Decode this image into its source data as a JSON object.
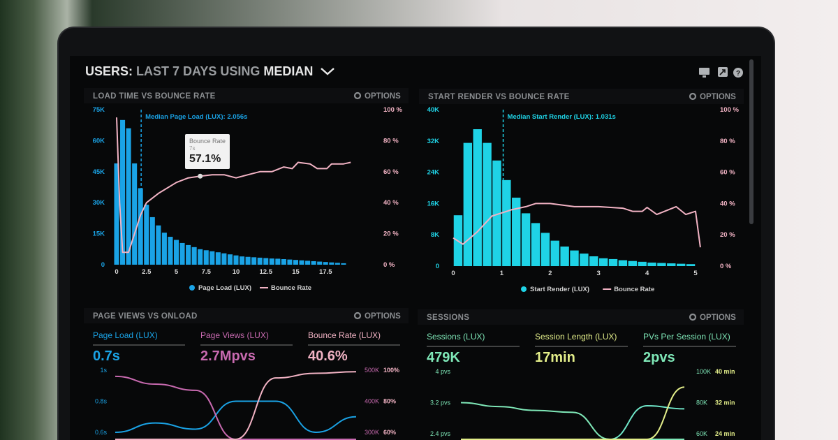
{
  "header": {
    "prefix": "USERS:",
    "period": "LAST 7 DAYS",
    "using": "USING",
    "stat": "MEDIAN"
  },
  "header_icons": [
    "monitor-icon",
    "share-icon",
    "help-icon"
  ],
  "options_label": "OPTIONS",
  "colors": {
    "blue": "#1aa3e6",
    "cyan": "#1fd3e6",
    "pink": "#f2b3c4",
    "purple": "#c86ab0",
    "green": "#7fe8b8",
    "yellow": "#e3ee8a"
  },
  "chart_data": [
    {
      "type": "bar",
      "title": "LOAD TIME VS BOUNCE RATE",
      "annotation": "Median Page Load (LUX): 2.056s",
      "median": 2.056,
      "xticks": [
        "0",
        "2.5",
        "5",
        "7.5",
        "10",
        "12.5",
        "15",
        "17.5"
      ],
      "ylim": [
        0,
        75000
      ],
      "yticks": [
        "0",
        "15K",
        "30K",
        "45K",
        "60K",
        "75K"
      ],
      "y2ticks": [
        "0 %",
        "20 %",
        "40 %",
        "60 %",
        "80 %",
        "100 %"
      ],
      "y2lim": [
        0,
        100
      ],
      "legend_position": "bottom",
      "tooltip": {
        "label": "Bounce Rate",
        "x": "7s",
        "value": "57.1%"
      },
      "series": [
        {
          "name": "Page Load (LUX)",
          "type": "bar",
          "bin": 0.5,
          "x_start": 0,
          "values": [
            49,
            70,
            66,
            49,
            37,
            29,
            23,
            19,
            15.5,
            13.5,
            12,
            10.5,
            9.5,
            8.5,
            7.5,
            7,
            6.5,
            6,
            5.5,
            5,
            4.5,
            4,
            3.8,
            3.6,
            3.4,
            3.2,
            3,
            2.9,
            2.7,
            2.5,
            2.3,
            2.1,
            1.9,
            1.7,
            1.5,
            1.3,
            1.1,
            0.9,
            0.7
          ],
          "unit": "K"
        },
        {
          "name": "Bounce Rate",
          "type": "line",
          "points": [
            [
              0,
              95
            ],
            [
              0.25,
              40
            ],
            [
              0.5,
              8
            ],
            [
              1,
              8
            ],
            [
              1.5,
              20
            ],
            [
              2,
              32
            ],
            [
              2.5,
              40
            ],
            [
              3.5,
              46
            ],
            [
              5,
              53
            ],
            [
              6,
              56
            ],
            [
              7,
              57.1
            ],
            [
              8,
              58
            ],
            [
              9,
              58
            ],
            [
              10,
              56
            ],
            [
              11,
              58
            ],
            [
              12,
              60
            ],
            [
              13,
              60
            ],
            [
              14,
              63
            ],
            [
              14.7,
              62
            ],
            [
              15.2,
              66
            ],
            [
              16.2,
              65
            ],
            [
              16.8,
              62
            ],
            [
              17.6,
              62
            ],
            [
              18,
              65
            ],
            [
              19,
              65
            ],
            [
              19.6,
              66
            ]
          ]
        }
      ]
    },
    {
      "type": "bar",
      "title": "START RENDER VS BOUNCE RATE",
      "annotation": "Median Start Render (LUX): 1.031s",
      "median": 1.031,
      "xticks": [
        "0",
        "1",
        "2",
        "3",
        "4",
        "5"
      ],
      "ylim": [
        0,
        40000
      ],
      "yticks": [
        "0",
        "8K",
        "16K",
        "24K",
        "32K",
        "40K"
      ],
      "y2ticks": [
        "0 %",
        "20 %",
        "40 %",
        "60 %",
        "80 %",
        "100 %"
      ],
      "y2lim": [
        0,
        100
      ],
      "legend_position": "bottom",
      "series": [
        {
          "name": "Start Render (LUX)",
          "type": "bar",
          "bin": 0.2,
          "x_start": 0.1,
          "values": [
            13,
            31.5,
            35,
            31.5,
            27,
            22,
            17.5,
            13.5,
            11,
            8.5,
            6.5,
            5,
            4,
            3.2,
            2.5,
            2,
            1.8,
            1.5,
            1.3,
            1.1,
            0.9,
            0.8,
            0.7,
            0.6,
            0.5
          ],
          "unit": "K"
        },
        {
          "name": "Bounce Rate",
          "type": "line",
          "points": [
            [
              0,
              18
            ],
            [
              0.2,
              14
            ],
            [
              0.5,
              22
            ],
            [
              0.8,
              32
            ],
            [
              1.2,
              36
            ],
            [
              1.5,
              38
            ],
            [
              1.7,
              40
            ],
            [
              2,
              40
            ],
            [
              2.5,
              38
            ],
            [
              3,
              38
            ],
            [
              3.5,
              37
            ],
            [
              3.7,
              35
            ],
            [
              3.9,
              35
            ],
            [
              4,
              37.5
            ],
            [
              4.2,
              33
            ],
            [
              4.6,
              38
            ],
            [
              4.8,
              33
            ],
            [
              5,
              35
            ],
            [
              5.1,
              12
            ]
          ]
        }
      ]
    },
    {
      "type": "line",
      "title": "PAGE VIEWS VS ONLOAD",
      "metrics": [
        {
          "label": "Page Load (LUX)",
          "value": "0.7s"
        },
        {
          "label": "Page Views (LUX)",
          "value": "2.7Mpvs"
        },
        {
          "label": "Bounce Rate (LUX)",
          "value": "40.6%"
        }
      ],
      "yticks": [
        "1s",
        "0.8s",
        "0.6s"
      ],
      "y2ticks": [
        "500K",
        "400K",
        "300K"
      ],
      "y3ticks": [
        "100%",
        "80%",
        "60%"
      ],
      "series": [
        {
          "name": "Page Load (LUX)",
          "values": [
            0.6,
            0.66,
            0.62,
            0.8,
            0.8,
            0.6,
            0.7
          ]
        },
        {
          "name": "Page Views (LUX)",
          "values": [
            480,
            455,
            435,
            250,
            150,
            150,
            150
          ]
        },
        {
          "name": "Bounce Rate (LUX)",
          "values": [
            20,
            20,
            20,
            20,
            95,
            98,
            99
          ]
        }
      ]
    },
    {
      "type": "line",
      "title": "SESSIONS",
      "metrics": [
        {
          "label": "Sessions (LUX)",
          "value": "479K"
        },
        {
          "label": "Session Length (LUX)",
          "value": "17min"
        },
        {
          "label": "PVs Per Session (LUX)",
          "value": "2pvs"
        }
      ],
      "yticks": [
        "4 pvs",
        "3.2 pvs",
        "2.4 pvs"
      ],
      "y2ticks": [
        "100K",
        "80K",
        "60K"
      ],
      "y3ticks": [
        "40 min",
        "32 min",
        "24 min"
      ],
      "series": [
        {
          "name": "PVs Per Session (LUX)",
          "values": [
            3.2,
            3.1,
            3.0,
            2.95,
            1.8,
            1.8,
            1.8
          ]
        },
        {
          "name": "Sessions (LUX)",
          "values": [
            50,
            50,
            50,
            50,
            50,
            78,
            76
          ]
        },
        {
          "name": "Session Length (LUX)",
          "values": [
            20,
            20,
            20,
            20,
            20,
            20,
            36
          ]
        }
      ]
    }
  ]
}
